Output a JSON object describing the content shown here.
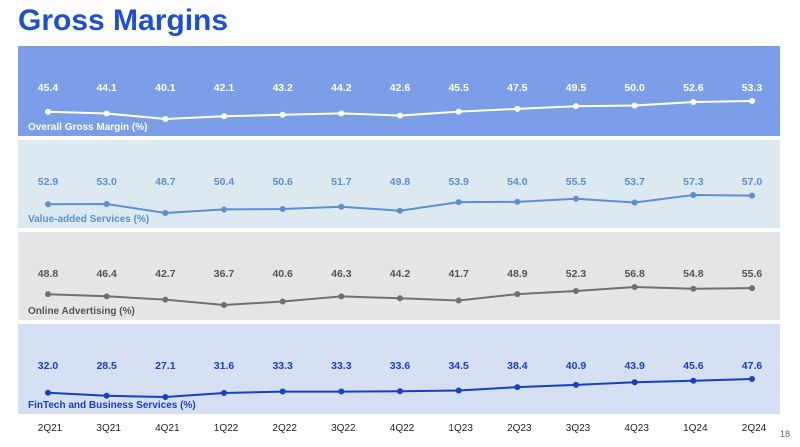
{
  "page": {
    "title": "Gross Margins",
    "page_number": "18"
  },
  "colors": {
    "title": "#1d4fd0",
    "panel_overall": "#7c9ee8",
    "panel_vas": "#dde9f1",
    "panel_online": "#e5e5e8",
    "panel_fintech": "#d5e0f2",
    "line_overall": "#ffffff",
    "line_vas": "#5b8fcf",
    "line_online": "#6f6f72",
    "line_fintech": "#1740c4"
  },
  "chart_data": {
    "type": "line",
    "categories": [
      "2Q21",
      "3Q21",
      "4Q21",
      "1Q22",
      "2Q22",
      "3Q22",
      "4Q22",
      "1Q23",
      "2Q23",
      "3Q23",
      "4Q23",
      "1Q24",
      "2Q24"
    ],
    "series": [
      {
        "name": "Overall Gross Margin (%)",
        "values": [
          45.4,
          44.1,
          40.1,
          42.1,
          43.2,
          44.2,
          42.6,
          45.5,
          47.5,
          49.5,
          50.0,
          52.6,
          53.3
        ]
      },
      {
        "name": "Value-added Services (%)",
        "values": [
          52.9,
          53.0,
          48.7,
          50.4,
          50.6,
          51.7,
          49.8,
          53.9,
          54.0,
          55.5,
          53.7,
          57.3,
          57.0
        ]
      },
      {
        "name": "Online Advertising (%)",
        "values": [
          48.8,
          46.4,
          42.7,
          36.7,
          40.6,
          46.3,
          44.2,
          41.7,
          48.9,
          52.3,
          56.8,
          54.8,
          55.6
        ]
      },
      {
        "name": "FinTech and Business Services (%)",
        "values": [
          32.0,
          28.5,
          27.1,
          31.6,
          33.3,
          33.3,
          33.6,
          34.5,
          38.4,
          40.9,
          43.9,
          45.6,
          47.6
        ]
      }
    ],
    "grid": false,
    "legend": "panel-bottom-left"
  }
}
